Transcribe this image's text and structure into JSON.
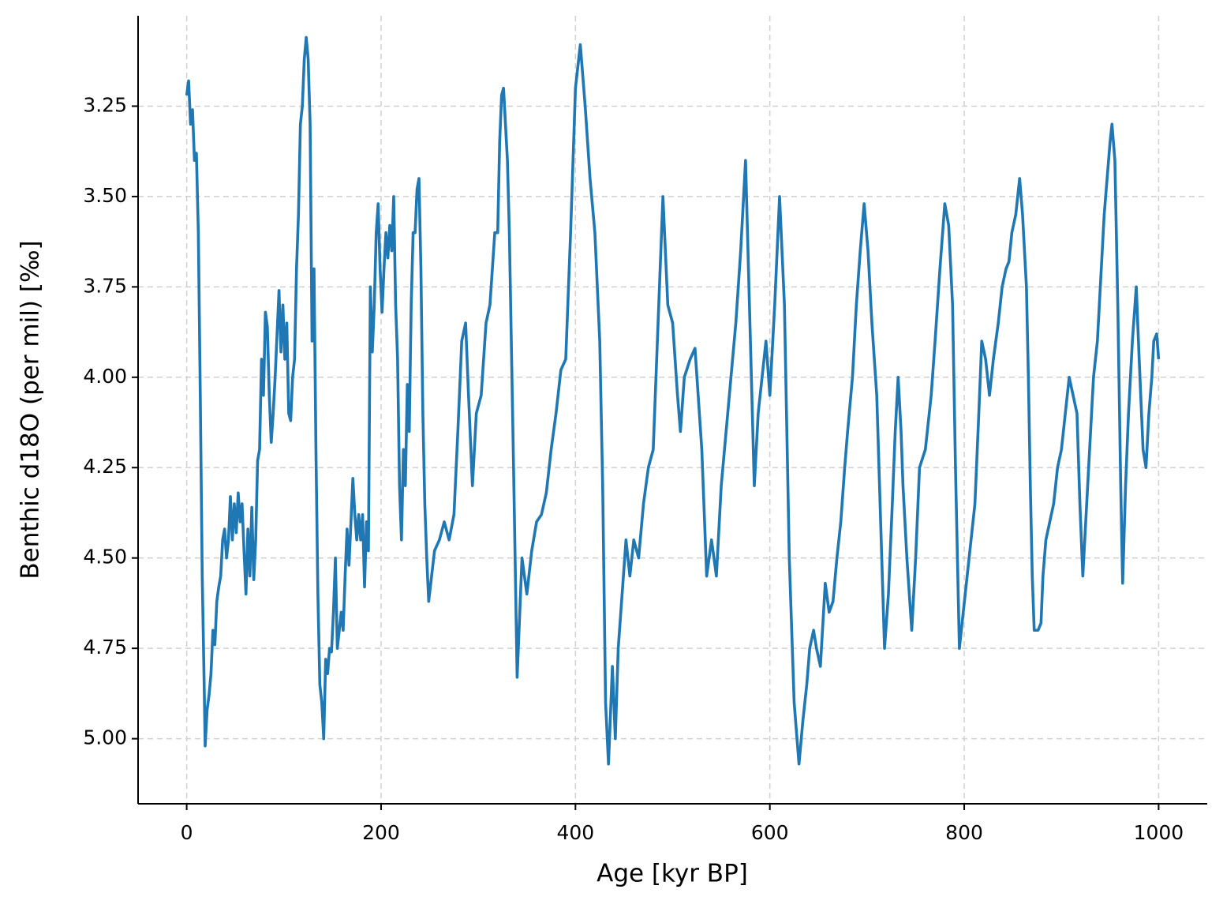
{
  "chart_data": {
    "type": "line",
    "xlabel": "Age [kyr BP]",
    "ylabel": "Benthic d18O (per mil) [‰]",
    "x": [
      0,
      2,
      4,
      6,
      8,
      10,
      12,
      14,
      16,
      18,
      19,
      21,
      23,
      25,
      27,
      29,
      31,
      33,
      35,
      37,
      39,
      41,
      43,
      45,
      47,
      49,
      51,
      53,
      55,
      57,
      59,
      61,
      63,
      65,
      67,
      69,
      71,
      73,
      75,
      77,
      79,
      81,
      83,
      85,
      87,
      89,
      91,
      93,
      95,
      97,
      99,
      101,
      103,
      105,
      107,
      109,
      111,
      113,
      115,
      117,
      119,
      121,
      123,
      125,
      127,
      129,
      131,
      133,
      135,
      137,
      139,
      141,
      143,
      145,
      147,
      149,
      151,
      153,
      155,
      157,
      159,
      161,
      163,
      165,
      167,
      169,
      171,
      173,
      175,
      177,
      179,
      181,
      183,
      185,
      187,
      189,
      191,
      193,
      195,
      197,
      199,
      201,
      203,
      205,
      207,
      209,
      211,
      213,
      215,
      217,
      219,
      221,
      223,
      225,
      227,
      229,
      231,
      233,
      235,
      237,
      239,
      241,
      243,
      245,
      247,
      249,
      252,
      255,
      260,
      265,
      270,
      275,
      279,
      283,
      287,
      290,
      294,
      298,
      303,
      308,
      312,
      317,
      320,
      322,
      324,
      326,
      328,
      330,
      332,
      336,
      340,
      345,
      350,
      355,
      360,
      365,
      370,
      375,
      380,
      385,
      390,
      395,
      400,
      405,
      410,
      415,
      420,
      425,
      428,
      431,
      434,
      438,
      441,
      444,
      448,
      452,
      456,
      460,
      465,
      470,
      475,
      480,
      485,
      490,
      495,
      500,
      505,
      508,
      512,
      518,
      523,
      530,
      535,
      540,
      545,
      550,
      555,
      560,
      565,
      570,
      575,
      580,
      584,
      588,
      592,
      596,
      600,
      605,
      610,
      615,
      620,
      625,
      630,
      634,
      638,
      641,
      645,
      648,
      652,
      657,
      661,
      665,
      669,
      673,
      677,
      680,
      685,
      689,
      693,
      697,
      701,
      705,
      710,
      714,
      718,
      722,
      726,
      729,
      732,
      735,
      737,
      741,
      746,
      750,
      754,
      760,
      766,
      770,
      775,
      780,
      784,
      788,
      791,
      795,
      799,
      803,
      807,
      811,
      815,
      818,
      822,
      826,
      830,
      835,
      839,
      843,
      846,
      849,
      853,
      857,
      860,
      864,
      866,
      868,
      870,
      872,
      876,
      879,
      881,
      884,
      888,
      892,
      896,
      900,
      904,
      908,
      912,
      916,
      919,
      922,
      926,
      930,
      933,
      937,
      941,
      944,
      947,
      950,
      952,
      955,
      958,
      961,
      963,
      966,
      969,
      973,
      977,
      980,
      984,
      987,
      990,
      993,
      995,
      998,
      1000
    ],
    "series": [
      {
        "color": "#1f77b4",
        "values": [
          3.22,
          3.18,
          3.3,
          3.26,
          3.4,
          3.38,
          3.6,
          4.05,
          4.55,
          4.85,
          5.02,
          4.92,
          4.88,
          4.82,
          4.7,
          4.74,
          4.62,
          4.58,
          4.55,
          4.45,
          4.42,
          4.5,
          4.45,
          4.33,
          4.45,
          4.35,
          4.43,
          4.32,
          4.4,
          4.35,
          4.48,
          4.6,
          4.42,
          4.55,
          4.36,
          4.56,
          4.45,
          4.23,
          4.2,
          3.95,
          4.05,
          3.82,
          3.86,
          4.05,
          4.18,
          4.1,
          4.0,
          3.88,
          3.76,
          3.93,
          3.8,
          3.95,
          3.85,
          4.1,
          4.12,
          4.0,
          3.95,
          3.7,
          3.55,
          3.3,
          3.25,
          3.12,
          3.06,
          3.12,
          3.3,
          3.9,
          3.7,
          4.2,
          4.6,
          4.85,
          4.9,
          5.0,
          4.78,
          4.82,
          4.75,
          4.76,
          4.65,
          4.5,
          4.75,
          4.7,
          4.65,
          4.7,
          4.55,
          4.42,
          4.52,
          4.4,
          4.28,
          4.38,
          4.45,
          4.38,
          4.45,
          4.38,
          4.58,
          4.4,
          4.48,
          3.75,
          3.93,
          3.8,
          3.6,
          3.52,
          3.7,
          3.82,
          3.7,
          3.6,
          3.67,
          3.58,
          3.65,
          3.5,
          3.8,
          3.95,
          4.3,
          4.45,
          4.2,
          4.3,
          4.02,
          4.15,
          3.8,
          3.6,
          3.6,
          3.48,
          3.45,
          3.7,
          4.1,
          4.35,
          4.5,
          4.62,
          4.55,
          4.48,
          4.45,
          4.4,
          4.45,
          4.38,
          4.15,
          3.9,
          3.85,
          4.05,
          4.3,
          4.1,
          4.05,
          3.85,
          3.8,
          3.6,
          3.6,
          3.35,
          3.22,
          3.2,
          3.3,
          3.4,
          3.6,
          4.2,
          4.83,
          4.5,
          4.6,
          4.48,
          4.4,
          4.38,
          4.32,
          4.2,
          4.1,
          3.98,
          3.95,
          3.6,
          3.2,
          3.08,
          3.25,
          3.45,
          3.6,
          3.9,
          4.3,
          4.9,
          5.07,
          4.8,
          5.0,
          4.75,
          4.6,
          4.45,
          4.55,
          4.45,
          4.5,
          4.35,
          4.25,
          4.2,
          3.85,
          3.5,
          3.8,
          3.85,
          4.05,
          4.15,
          4.0,
          3.95,
          3.92,
          4.2,
          4.55,
          4.45,
          4.55,
          4.3,
          4.15,
          4.0,
          3.85,
          3.65,
          3.4,
          3.9,
          4.3,
          4.1,
          4.0,
          3.9,
          4.05,
          3.8,
          3.5,
          3.8,
          4.5,
          4.9,
          5.07,
          4.95,
          4.85,
          4.75,
          4.7,
          4.75,
          4.8,
          4.57,
          4.65,
          4.62,
          4.5,
          4.4,
          4.25,
          4.15,
          4.0,
          3.8,
          3.65,
          3.52,
          3.65,
          3.85,
          4.05,
          4.4,
          4.75,
          4.6,
          4.35,
          4.15,
          4.0,
          4.15,
          4.3,
          4.5,
          4.7,
          4.5,
          4.25,
          4.2,
          4.05,
          3.9,
          3.7,
          3.52,
          3.58,
          3.8,
          4.25,
          4.75,
          4.65,
          4.55,
          4.45,
          4.35,
          4.1,
          3.9,
          3.95,
          4.05,
          3.95,
          3.85,
          3.75,
          3.7,
          3.68,
          3.6,
          3.55,
          3.45,
          3.55,
          3.75,
          4.0,
          4.3,
          4.55,
          4.7,
          4.7,
          4.68,
          4.55,
          4.45,
          4.4,
          4.35,
          4.25,
          4.2,
          4.1,
          4.0,
          4.05,
          4.1,
          4.35,
          4.55,
          4.35,
          4.15,
          4.0,
          3.9,
          3.7,
          3.55,
          3.45,
          3.35,
          3.3,
          3.4,
          3.8,
          4.3,
          4.57,
          4.3,
          4.1,
          3.9,
          3.75,
          3.95,
          4.2,
          4.25,
          4.1,
          4.0,
          3.9,
          3.88,
          3.95
        ]
      }
    ],
    "xlim": [
      -50,
      1050
    ],
    "ylim": [
      5.18,
      3.0
    ],
    "xticks": [
      0,
      200,
      400,
      600,
      800,
      1000
    ],
    "yticks": [
      3.25,
      {
        "value": 3.5,
        "label": "3.50"
      },
      3.75,
      {
        "value": 4,
        "label": "4.00"
      },
      4.25,
      {
        "value": 4.5,
        "label": "4.50"
      },
      4.75,
      {
        "value": 5,
        "label": "5.00"
      }
    ],
    "grid": true
  }
}
